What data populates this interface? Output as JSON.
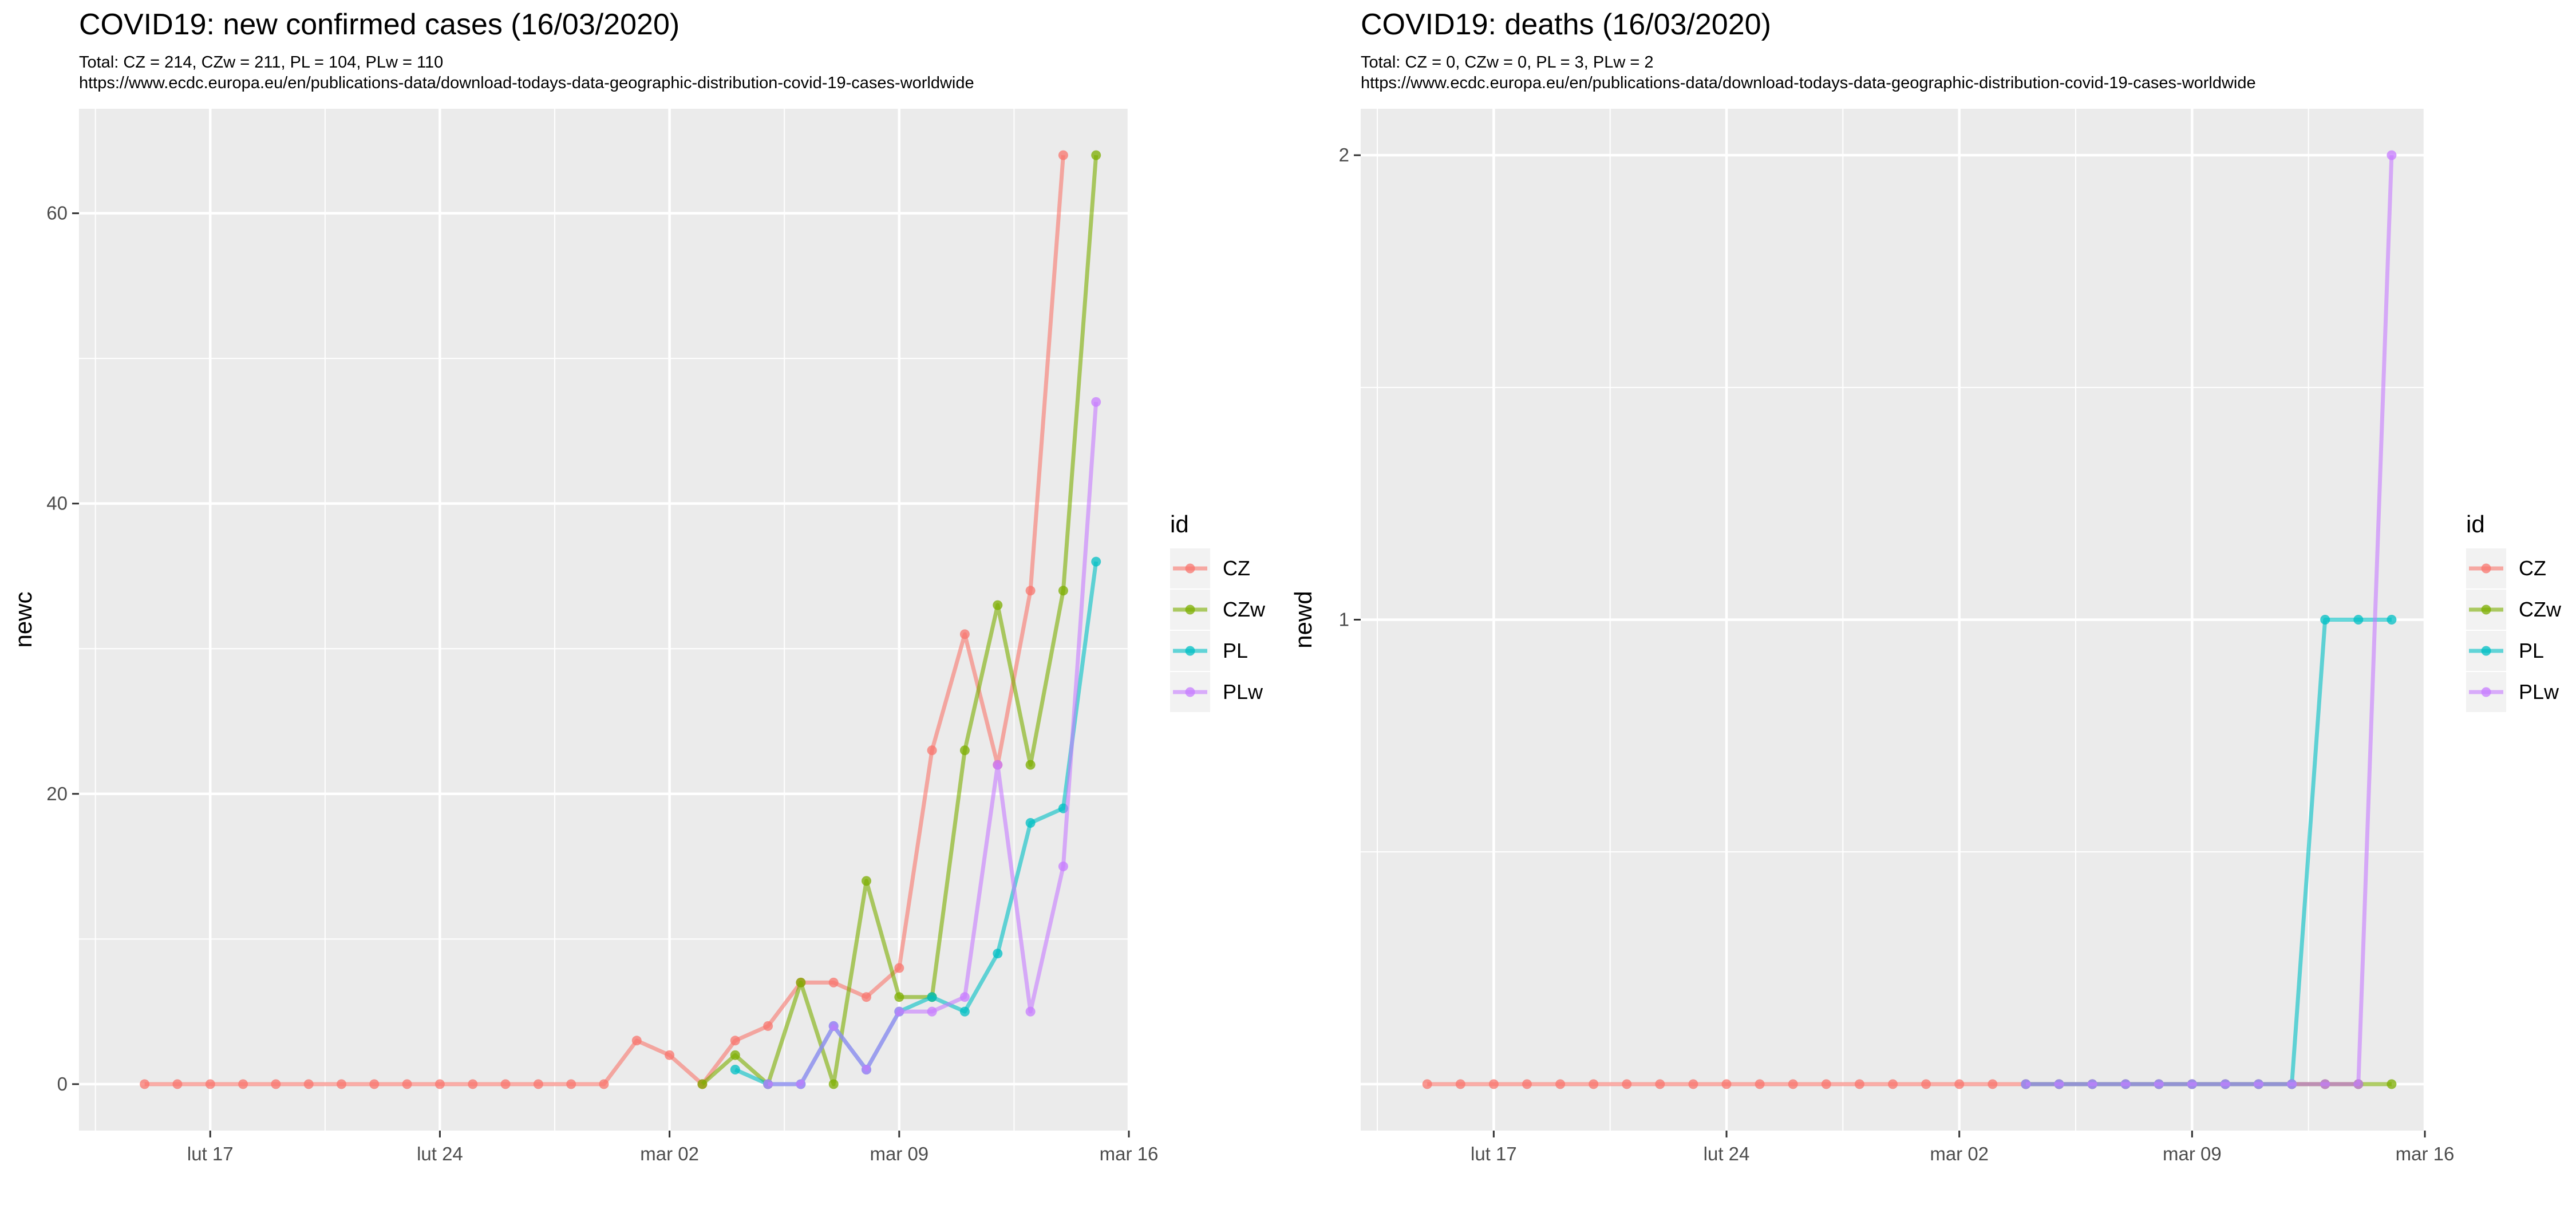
{
  "chart_data": [
    {
      "type": "line",
      "title": "COVID19: new confirmed cases (16/03/2020)",
      "subtitle_line1": "Total: CZ = 214, CZw = 211, PL = 104, PLw = 110",
      "subtitle_line2": "https://www.ecdc.europa.eu/en/publications-data/download-todays-data-geographic-distribution-covid-19-cases-worldwide",
      "xlabel": "",
      "ylabel": "newc",
      "x_ticks": [
        {
          "date": "2020-02-17",
          "label": "lut 17"
        },
        {
          "date": "2020-02-24",
          "label": "lut 24"
        },
        {
          "date": "2020-03-02",
          "label": "mar 02"
        },
        {
          "date": "2020-03-09",
          "label": "mar 09"
        },
        {
          "date": "2020-03-16",
          "label": "mar 16"
        }
      ],
      "xlim": [
        "2020-02-13",
        "2020-03-16"
      ],
      "ylim": [
        -3.2,
        67.2
      ],
      "y_ticks": [
        0,
        20,
        40,
        60
      ],
      "y_minor": [
        10,
        30,
        50
      ],
      "legend": {
        "title": "id",
        "entries": [
          "CZ",
          "CZw",
          "PL",
          "PLw"
        ],
        "position": "right"
      },
      "series": [
        {
          "name": "CZ",
          "color": "#F8766D",
          "start": "2020-02-15",
          "values": [
            0,
            0,
            0,
            0,
            0,
            0,
            0,
            0,
            0,
            0,
            0,
            0,
            0,
            0,
            0,
            3,
            2,
            0,
            3,
            4,
            7,
            7,
            6,
            8,
            23,
            31,
            22,
            34,
            64
          ]
        },
        {
          "name": "CZw",
          "color": "#7CAE00",
          "start": "2020-03-03",
          "values": [
            0,
            2,
            0,
            7,
            0,
            14,
            6,
            6,
            23,
            33,
            22,
            34,
            64
          ]
        },
        {
          "name": "PL",
          "color": "#00BFC4",
          "start": "2020-03-04",
          "values": [
            1,
            0,
            0,
            4,
            1,
            5,
            6,
            5,
            9,
            18,
            19,
            36
          ]
        },
        {
          "name": "PLw",
          "color": "#C77CFF",
          "start": "2020-03-05",
          "values": [
            0,
            0,
            4,
            1,
            5,
            5,
            6,
            22,
            5,
            15,
            47
          ]
        }
      ]
    },
    {
      "type": "line",
      "title": "COVID19: deaths (16/03/2020)",
      "subtitle_line1": "Total: CZ = 0, CZw = 0, PL = 3, PLw = 2",
      "subtitle_line2": "https://www.ecdc.europa.eu/en/publications-data/download-todays-data-geographic-distribution-covid-19-cases-worldwide",
      "xlabel": "",
      "ylabel": "newd",
      "x_ticks": [
        {
          "date": "2020-02-17",
          "label": "lut 17"
        },
        {
          "date": "2020-02-24",
          "label": "lut 24"
        },
        {
          "date": "2020-03-02",
          "label": "mar 02"
        },
        {
          "date": "2020-03-09",
          "label": "mar 09"
        },
        {
          "date": "2020-03-16",
          "label": "mar 16"
        }
      ],
      "xlim": [
        "2020-02-13",
        "2020-03-16"
      ],
      "ylim": [
        -0.1,
        2.1
      ],
      "y_ticks": [
        1,
        2
      ],
      "y_minor": [
        0.5,
        1.5
      ],
      "legend": {
        "title": "id",
        "entries": [
          "CZ",
          "CZw",
          "PL",
          "PLw"
        ],
        "position": "right"
      },
      "series": [
        {
          "name": "CZ",
          "color": "#F8766D",
          "start": "2020-02-15",
          "values": [
            0,
            0,
            0,
            0,
            0,
            0,
            0,
            0,
            0,
            0,
            0,
            0,
            0,
            0,
            0,
            0,
            0,
            0,
            0,
            0,
            0,
            0,
            0,
            0,
            0,
            0,
            0,
            0,
            0
          ]
        },
        {
          "name": "CZw",
          "color": "#7CAE00",
          "start": "2020-03-04",
          "values": [
            0,
            0,
            0,
            0,
            0,
            0,
            0,
            0,
            0,
            0,
            0,
            0
          ]
        },
        {
          "name": "PL",
          "color": "#00BFC4",
          "start": "2020-03-04",
          "values": [
            0,
            0,
            0,
            0,
            0,
            0,
            0,
            0,
            0,
            1,
            1,
            1
          ]
        },
        {
          "name": "PLw",
          "color": "#C77CFF",
          "start": "2020-03-04",
          "values": [
            0,
            0,
            0,
            0,
            0,
            0,
            0,
            0,
            0,
            0,
            0,
            2
          ]
        }
      ]
    }
  ]
}
